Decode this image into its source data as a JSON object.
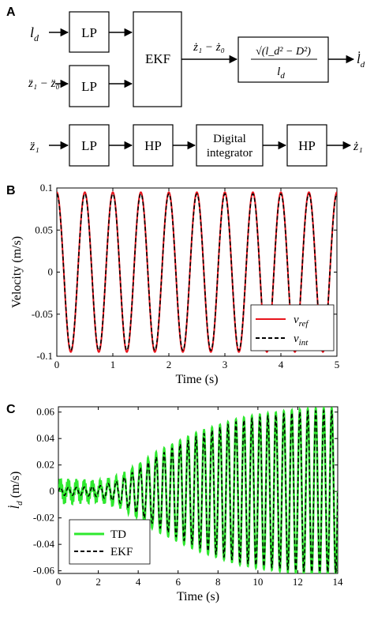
{
  "panels": {
    "a": {
      "letter": "A"
    },
    "b": {
      "letter": "B"
    },
    "c": {
      "letter": "C"
    }
  },
  "diagram": {
    "row1_input": "l",
    "row1_input_sub": "d",
    "row2_input": "z̈₁ − z̈₀",
    "lp1": "LP",
    "lp2": "LP",
    "ekf": "EKF",
    "ekf_output": "ż₁ − ż₀",
    "formula_numerator": "√(l_d² − D²)",
    "formula_denominator": "l",
    "formula_denominator_sub": "d",
    "row1_output": "l̇",
    "row1_output_sub": "d",
    "row3_input": "z̈₁",
    "lp3": "LP",
    "hp1": "HP",
    "integrator_line1": "Digital",
    "integrator_line2": "integrator",
    "hp2": "HP",
    "row3_output": "ż₁"
  },
  "chart_data": [
    {
      "panel": "B",
      "type": "line",
      "xlabel": "Time (s)",
      "ylabel": "Velocity (m/s)",
      "xlim": [
        0,
        5
      ],
      "ylim": [
        -0.1,
        0.1
      ],
      "xticks": [
        "0",
        "1",
        "2",
        "3",
        "4",
        "5"
      ],
      "yticks": [
        "0.1",
        "0.05",
        "0",
        "-0.05",
        "-0.1"
      ],
      "grid": false,
      "legend": "bottom-right",
      "series": [
        {
          "name": "v_ref",
          "label_main": "v",
          "label_sub": "ref",
          "color": "#e8141c",
          "dash": "solid",
          "amplitude": 0.095,
          "frequency_hz": 2,
          "phase": "cosine"
        },
        {
          "name": "v_int",
          "label_main": "v",
          "label_sub": "int",
          "color": "#000000",
          "dash": "dashed",
          "amplitude": 0.093,
          "frequency_hz": 2,
          "phase": "cosine"
        }
      ]
    },
    {
      "panel": "C",
      "type": "line",
      "xlabel": "Time (s)",
      "ylabel_main": "l̇",
      "ylabel_sub": "d",
      "ylabel_unit": "(m/s)",
      "xlim": [
        0,
        14
      ],
      "ylim": [
        -0.062,
        0.064
      ],
      "xticks": [
        "0",
        "2",
        "4",
        "6",
        "8",
        "10",
        "12",
        "14"
      ],
      "yticks": [
        "0.06",
        "0.04",
        "0.02",
        "0",
        "-0.02",
        "-0.04",
        "-0.06"
      ],
      "grid": false,
      "legend": "bottom-left",
      "series": [
        {
          "name": "TD",
          "color": "#2ee82e",
          "dash": "solid",
          "frequency_hz": 2.5,
          "envelope_amplitude": [
            0.006,
            0.006,
            0.006,
            0.01,
            0.02,
            0.03,
            0.038,
            0.045,
            0.05,
            0.055,
            0.058,
            0.06,
            0.062,
            0.063,
            0.063
          ],
          "envelope_time": [
            0,
            1,
            2,
            3,
            4,
            5,
            6,
            7,
            8,
            9,
            10,
            11,
            12,
            13,
            14
          ]
        },
        {
          "name": "EKF",
          "color": "#000000",
          "dash": "dashed",
          "frequency_hz": 2.5,
          "envelope_amplitude": [
            0.003,
            0.003,
            0.004,
            0.008,
            0.017,
            0.027,
            0.035,
            0.042,
            0.048,
            0.053,
            0.056,
            0.058,
            0.06,
            0.061,
            0.061
          ],
          "envelope_time": [
            0,
            1,
            2,
            3,
            4,
            5,
            6,
            7,
            8,
            9,
            10,
            11,
            12,
            13,
            14
          ]
        }
      ]
    }
  ]
}
